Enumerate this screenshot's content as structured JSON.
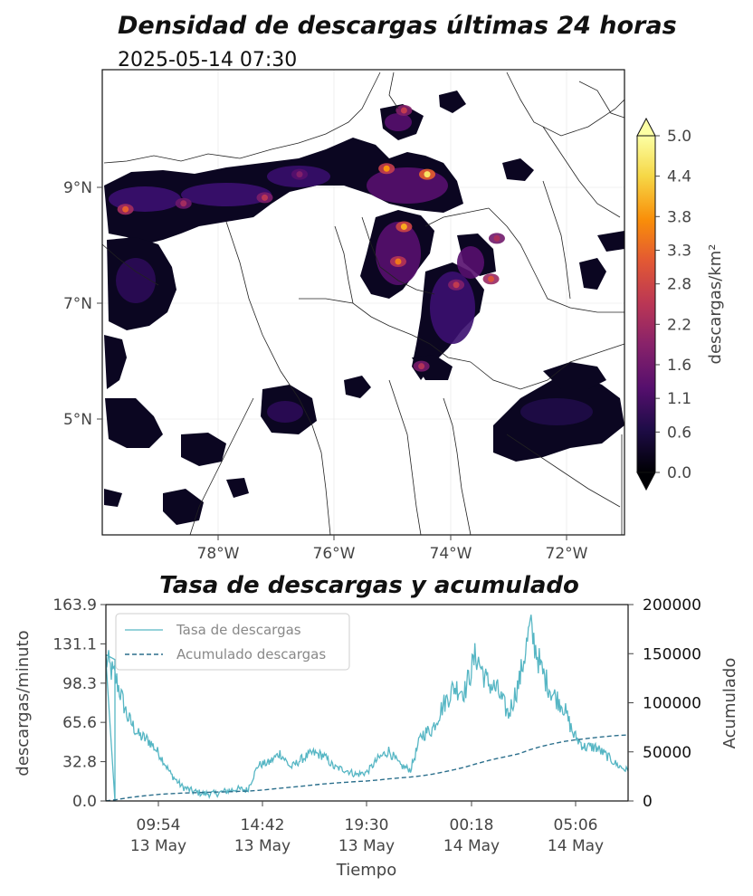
{
  "map_panel": {
    "title": "Densidad de descargas últimas 24 horas",
    "subtitle": "2025-05-14 07:30",
    "x_ticks": [
      "78°W",
      "76°W",
      "74°W",
      "72°W"
    ],
    "y_ticks": [
      "9°N",
      "7°N",
      "5°N"
    ],
    "extent": {
      "lon": [
        -80,
        -71
      ],
      "lat": [
        3,
        11
      ]
    },
    "colorbar": {
      "label": "descargas/km²",
      "ticks": [
        "0.0",
        "0.6",
        "1.1",
        "1.6",
        "2.2",
        "2.8",
        "3.3",
        "3.8",
        "4.4",
        "5.0"
      ],
      "colormap": "inferno",
      "range": [
        0.0,
        5.0
      ],
      "extend": "both"
    },
    "hotspots": [
      {
        "lon": -79.6,
        "lat": 8.6,
        "density": 3.2
      },
      {
        "lon": -78.6,
        "lat": 8.7,
        "density": 2.2
      },
      {
        "lon": -77.2,
        "lat": 8.8,
        "density": 2.5
      },
      {
        "lon": -76.6,
        "lat": 9.2,
        "density": 1.8
      },
      {
        "lon": -75.1,
        "lat": 9.3,
        "density": 3.8
      },
      {
        "lon": -74.4,
        "lat": 9.2,
        "density": 4.6
      },
      {
        "lon": -74.8,
        "lat": 10.3,
        "density": 2.6
      },
      {
        "lon": -74.8,
        "lat": 8.3,
        "density": 4.0
      },
      {
        "lon": -74.9,
        "lat": 7.7,
        "density": 3.5
      },
      {
        "lon": -73.9,
        "lat": 7.3,
        "density": 2.6
      },
      {
        "lon": -73.3,
        "lat": 7.4,
        "density": 3.0
      },
      {
        "lon": -74.5,
        "lat": 5.9,
        "density": 2.4
      },
      {
        "lon": -73.2,
        "lat": 8.1,
        "density": 2.3
      }
    ]
  },
  "rate_panel": {
    "title": "Tasa de descargas y acumulado",
    "ylabel_left": "descargas/minuto",
    "ylabel_right": "Acumulado",
    "xlabel": "Tiempo",
    "y_left_ticks": [
      "0.0",
      "32.8",
      "65.6",
      "98.3",
      "131.1",
      "163.9"
    ],
    "y_left_range": [
      0,
      163.9
    ],
    "y_right_ticks": [
      "0",
      "50000",
      "100000",
      "150000",
      "200000"
    ],
    "y_right_range": [
      0,
      200000
    ],
    "x_ticks": [
      {
        "time": "09:54",
        "date": "13 May"
      },
      {
        "time": "14:42",
        "date": "13 May"
      },
      {
        "time": "19:30",
        "date": "13 May"
      },
      {
        "time": "00:18",
        "date": "14 May"
      },
      {
        "time": "05:06",
        "date": "14 May"
      }
    ],
    "legend": {
      "rate": "Tasa de descargas",
      "cumulative": "Acumulado descargas"
    },
    "colors": {
      "rate": "#56b6c4",
      "cumulative": "#2b6f8c"
    }
  },
  "chart_data": [
    {
      "type": "heatmap",
      "title": "Densidad de descargas últimas 24 horas",
      "subtitle": "2025-05-14 07:30",
      "colorbar_label": "descargas/km²",
      "colorbar_range": [
        0.0,
        5.0
      ]
    },
    {
      "type": "line",
      "title": "Tasa de descargas y acumulado",
      "xlabel": "Tiempo",
      "ylabel": "descargas/minuto",
      "ylabel_right": "Acumulado",
      "x_hours": [
        "07:30",
        "08:00",
        "08:30",
        "09:00",
        "09:30",
        "10:00",
        "10:30",
        "11:00",
        "11:30",
        "12:00",
        "12:30",
        "13:00",
        "13:30",
        "14:00",
        "14:30",
        "15:00",
        "15:30",
        "16:00",
        "16:30",
        "17:00",
        "17:30",
        "18:00",
        "18:30",
        "19:00",
        "19:30",
        "20:00",
        "20:30",
        "21:00",
        "21:30",
        "22:00",
        "22:30",
        "23:00",
        "23:30",
        "00:00",
        "00:30",
        "01:00",
        "01:30",
        "02:00",
        "02:30",
        "03:00",
        "03:30",
        "04:00",
        "04:30",
        "05:00",
        "05:30",
        "06:00",
        "06:30",
        "07:00",
        "07:30"
      ],
      "series": [
        {
          "name": "Tasa de descargas",
          "axis": "left",
          "values": [
            118,
            100,
            70,
            55,
            50,
            38,
            22,
            12,
            8,
            6,
            6,
            8,
            10,
            9,
            30,
            32,
            40,
            28,
            35,
            40,
            38,
            28,
            26,
            22,
            24,
            35,
            42,
            30,
            26,
            55,
            60,
            80,
            95,
            92,
            122,
            100,
            92,
            72,
            100,
            145,
            110,
            90,
            80,
            55,
            45,
            45,
            38,
            30,
            25
          ]
        },
        {
          "name": "Acumulado descargas",
          "axis": "right",
          "values": [
            0,
            1500,
            3200,
            4600,
            5800,
            6800,
            7500,
            8000,
            8400,
            8700,
            9000,
            9300,
            9700,
            10000,
            10800,
            11800,
            13000,
            14000,
            15000,
            16200,
            17300,
            18200,
            19000,
            19700,
            20400,
            21300,
            22500,
            23500,
            24300,
            25600,
            27300,
            29400,
            31800,
            34500,
            37700,
            40700,
            43400,
            45700,
            48200,
            52300,
            55500,
            58100,
            60400,
            62000,
            63300,
            64600,
            65700,
            66600,
            67300
          ]
        }
      ]
    }
  ]
}
